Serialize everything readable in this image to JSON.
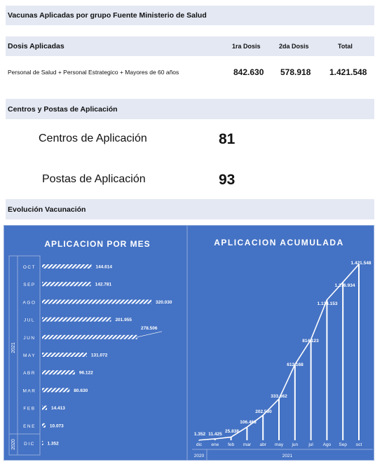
{
  "header": {
    "title": "Vacunas Aplicadas por grupo Fuente Ministerio de Salud"
  },
  "doses": {
    "section_label": "Dosis Aplicadas",
    "columns": [
      "1ra Dosis",
      "2da Dosis",
      "Total"
    ],
    "row": {
      "label": "Personal de Salud + Personal Estrategico + Mayores de 60 años",
      "first": "842.630",
      "second": "578.918",
      "total": "1.421.548"
    }
  },
  "centers": {
    "section_label": "Centros y Postas de Aplicación",
    "centros_label": "Centros de Aplicación",
    "centros_value": "81",
    "postas_label": "Postas de Aplicación",
    "postas_value": "93"
  },
  "evolution": {
    "section_label": "Evolución Vacunación"
  },
  "colors": {
    "band": "#e3e8f3",
    "panel": "#4472c4",
    "panel_border": "#8faadc",
    "mark": "#ffffff"
  },
  "chart_data": [
    {
      "type": "bar",
      "orientation": "horizontal",
      "title": "APLICACION POR MES",
      "year_labels": [
        "2021",
        "2020"
      ],
      "categories": [
        "OCT",
        "SEP",
        "AGO",
        "JUL",
        "JUN",
        "MAY",
        "ABR",
        "MAR",
        "FEB",
        "ENE",
        "DIC"
      ],
      "values": [
        144614,
        142781,
        320030,
        201955,
        278506,
        131072,
        96122,
        80630,
        14413,
        10073,
        1352
      ],
      "value_labels": [
        "144.614",
        "142.781",
        "320.030",
        "201.955",
        "278.506",
        "131.072",
        "96.122",
        "80.630",
        "14.413",
        "10.073",
        "1.352"
      ],
      "fill": "hatched-white"
    },
    {
      "type": "bar",
      "title": "APLICACION ACUMULADA",
      "categories": [
        "dic",
        "ene",
        "feb",
        "mar",
        "abr",
        "may",
        "jun",
        "jul",
        "Ago",
        "Sep",
        "oct"
      ],
      "values": [
        1352,
        11425,
        25838,
        106468,
        202590,
        333662,
        612168,
        814123,
        1134153,
        1276934,
        1421548
      ],
      "value_labels": [
        "1.352",
        "11.425",
        "25.838",
        "106.468",
        "202.590",
        "333.662",
        "612.168",
        "814.123",
        "1.134.153",
        "1.276.934",
        "1.421.548"
      ],
      "year_labels": [
        "2020",
        "2021"
      ],
      "overlay": "line connecting bar tops"
    }
  ]
}
